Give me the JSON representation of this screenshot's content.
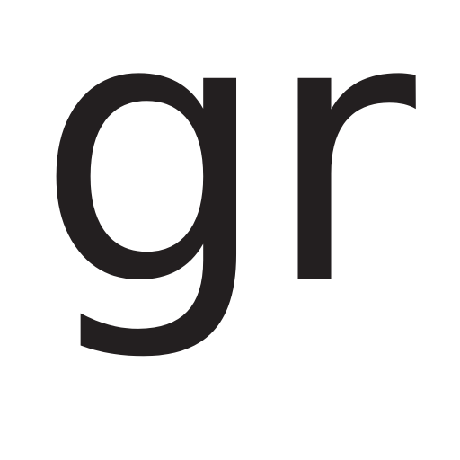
{
  "logo": {
    "text": "gr",
    "color": "#231f20",
    "background": "#ffffff"
  }
}
